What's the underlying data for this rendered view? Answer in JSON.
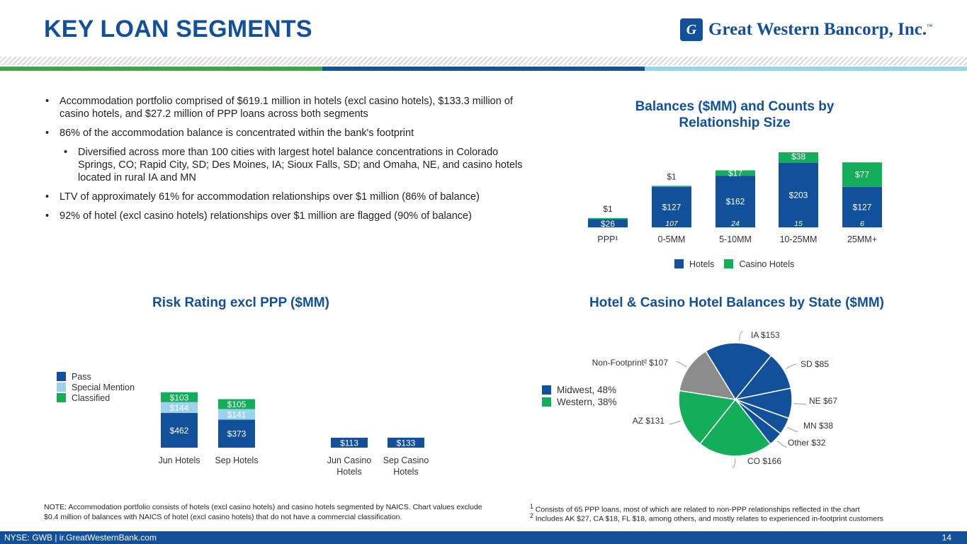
{
  "header": {
    "title": "KEY LOAN SEGMENTS",
    "logo_mark": "G",
    "logo_text": "Great Western Bancorp, Inc.",
    "logo_tm": "™"
  },
  "bullets": [
    {
      "level": 1,
      "text": "Accommodation portfolio comprised of $619.1 million in hotels (excl casino hotels), $133.3 million of casino hotels, and $27.2 million of PPP loans across both segments"
    },
    {
      "level": 1,
      "text": "86% of the accommodation balance is concentrated within the bank's footprint"
    },
    {
      "level": 2,
      "text": "Diversified across more than 100 cities with largest hotel balance concentrations in Colorado Springs, CO; Rapid City, SD; Des Moines, IA; Sioux Falls, SD; and Omaha, NE, and casino hotels located in rural IA and MN"
    },
    {
      "level": 1,
      "text": "LTV of approximately 61% for accommodation relationships over $1 million (86% of balance)"
    },
    {
      "level": 1,
      "text": "92% of hotel (excl casino hotels) relationships over $1 million are flagged (90% of balance)"
    }
  ],
  "colors": {
    "blue": "#12509a",
    "green": "#14ad5a",
    "light_blue": "#9cd2ee",
    "gray": "#8c8c8c",
    "band_green": "#3aa648",
    "band_blue": "#12509a",
    "band_light": "#9cd2ee"
  },
  "chart_data": [
    {
      "id": "relationship",
      "type": "bar",
      "stacked": true,
      "title": "Balances ($MM) and Counts by Relationship Size",
      "categories": [
        "PPP¹",
        "0-5MM",
        "5-10MM",
        "10-25MM",
        "25MM+"
      ],
      "series": [
        {
          "name": "Hotels",
          "color": "#12509a",
          "values": [
            26,
            127,
            162,
            203,
            127
          ],
          "labels": [
            "$26",
            "$127",
            "$162",
            "$203",
            "$127"
          ]
        },
        {
          "name": "Casino Hotels",
          "color": "#14ad5a",
          "values": [
            1,
            1,
            17,
            38,
            77
          ],
          "labels": [
            "$1",
            "$1",
            "$17",
            "$38",
            "$77"
          ]
        }
      ],
      "counts": [
        "",
        "107",
        "24",
        "15",
        "6"
      ],
      "legend": [
        "Hotels",
        "Casino Hotels"
      ],
      "ylim": [
        0,
        245
      ]
    },
    {
      "id": "risk",
      "type": "bar",
      "stacked": true,
      "title": "Risk Rating excl PPP ($MM)",
      "categories": [
        "Jun Hotels",
        "Sep Hotels",
        "Jun Casino Hotels",
        "Sep Casino Hotels"
      ],
      "category_lines": [
        [
          "Jun Hotels"
        ],
        [
          "Sep Hotels"
        ],
        [
          "Jun Casino",
          "Hotels"
        ],
        [
          "Sep Casino",
          "Hotels"
        ]
      ],
      "series": [
        {
          "name": "Pass",
          "color": "#12509a",
          "values": [
            462,
            373,
            113,
            133
          ],
          "labels": [
            "$462",
            "$373",
            "$113",
            "$133"
          ]
        },
        {
          "name": "Special Mention",
          "color": "#9cd2ee",
          "values": [
            144,
            141,
            0,
            0
          ],
          "labels": [
            "$144",
            "$141",
            "",
            ""
          ]
        },
        {
          "name": "Classified",
          "color": "#14ad5a",
          "values": [
            103,
            105,
            0,
            0
          ],
          "labels": [
            "$103",
            "$105",
            "",
            ""
          ]
        }
      ],
      "legend": [
        "Pass",
        "Special Mention",
        "Classified"
      ],
      "ylim": [
        0,
        800
      ]
    },
    {
      "id": "state",
      "type": "pie",
      "title": "Hotel & Casino Hotel Balances by State ($MM)",
      "slices": [
        {
          "label": "IA $153",
          "value": 153,
          "color": "#12509a"
        },
        {
          "label": "SD $85",
          "value": 85,
          "color": "#12509a"
        },
        {
          "label": "NE $67",
          "value": 67,
          "color": "#12509a"
        },
        {
          "label": "MN $38",
          "value": 38,
          "color": "#12509a"
        },
        {
          "label": "Other $32",
          "value": 32,
          "color": "#12509a"
        },
        {
          "label": "CO $166",
          "value": 166,
          "color": "#14ad5a"
        },
        {
          "label": "AZ $131",
          "value": 131,
          "color": "#14ad5a"
        },
        {
          "label": "Non-Footprint² $107",
          "value": 107,
          "color": "#8c8c8c"
        }
      ],
      "legend": [
        "Midwest, 48%",
        "Western, 38%"
      ]
    }
  ],
  "notes": {
    "left": "NOTE: Accommodation portfolio consists of hotels (excl casino hotels) and casino hotels segmented by NAICS. Chart values exclude $0.4 million of balances with NAICS of hotel (excl casino hotels) that do not have a commercial classification.",
    "fn1_mark": "1",
    "fn1": "Consists of 65 PPP loans, most of which are related to non-PPP relationships reflected in the chart",
    "fn2_mark": "2",
    "fn2": "Includes AK $27, CA $18, FL $18, among others, and mostly relates to experienced in-footprint customers"
  },
  "footer": {
    "left": "NYSE: GWB  |  ir.GreatWesternBank.com",
    "page": "14"
  }
}
